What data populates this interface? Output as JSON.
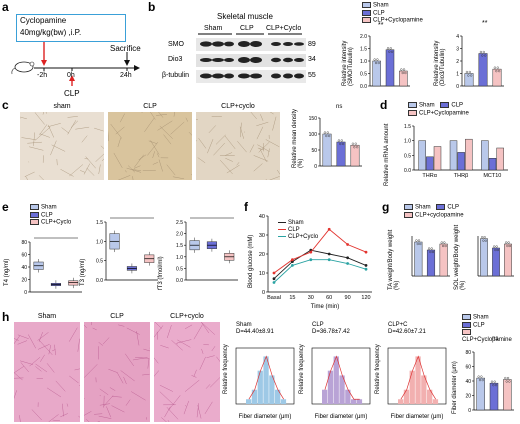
{
  "panel_letters": {
    "a": "a",
    "b": "b",
    "c": "c",
    "d": "d",
    "e": "e",
    "f": "f",
    "g": "g",
    "h": "h"
  },
  "colors": {
    "sham": "#b9c8ea",
    "clp": "#6b6fd6",
    "cyclo": "#f5c3c3",
    "red": "#e3342f",
    "teal": "#2aa3a3"
  },
  "panel_a": {
    "box_title": "Cyclopamine",
    "box_dose": "40mg/kg(bw) ,i.P.",
    "t_m2": "-2h",
    "t_0": "0h",
    "t_24": "24h",
    "sacrifice": "Sacrifice",
    "clp": "CLP"
  },
  "panel_b": {
    "tissue": "Skeletal muscle",
    "groups": [
      "Sham",
      "CLP",
      "CLP+Cyclo"
    ],
    "rows": [
      "SMO",
      "Dio3",
      "β-tubulin"
    ],
    "kda": [
      "89",
      "34",
      "55"
    ],
    "legend": [
      "Sham",
      "CLP",
      "CLP+Cyclopamine"
    ],
    "ylabel1": "Relative intensity (SMO/Tubulin)",
    "ylabel2": "Relative intensity (Dio3/Tubulin)",
    "sig": [
      "**",
      "**",
      "**",
      "**"
    ]
  },
  "panel_c": {
    "labels": [
      "sham",
      "CLP",
      "CLP+cyclo"
    ],
    "ylabel": "Relative mean density (%)",
    "xcats": [
      "Sham",
      "CLP",
      "CLP+cyclo"
    ],
    "sig": [
      "ns",
      "*"
    ]
  },
  "panel_d": {
    "legend": [
      "Sham",
      "CLP",
      "CLP+Cyclopamine"
    ],
    "ylabel": "Relative mRNA amount",
    "xcats": [
      "THRα",
      "THRβ",
      "MCT10"
    ]
  },
  "panel_e": {
    "legend": [
      "Sham",
      "CLP",
      "CLP+Cyclo"
    ],
    "ylabels": [
      "T4 (ng/ml)",
      "T3 (ng/ml)",
      "fT3 (fmol/ml)"
    ],
    "sig": [
      "*",
      "ns",
      "*",
      "*",
      "ns",
      "*"
    ]
  },
  "panel_f": {
    "legend": [
      "Sham",
      "CLP",
      "CLP+Cyclo"
    ],
    "ylabel": "Blood glucose (mM)",
    "xlabel": "Time (min)",
    "yticks": [
      "0",
      "10",
      "20",
      "30",
      "40"
    ],
    "xticks": [
      "Basal",
      "15",
      "30",
      "60",
      "90",
      "120"
    ]
  },
  "panel_g": {
    "legend": [
      "Sham",
      "CLP",
      "CLP+cyclopamine"
    ],
    "ylabels": [
      "TA weight/Body weight (%)",
      "SOL weight/Body weight (%)"
    ],
    "yticks1": [
      "0.00",
      "0.05",
      "0.10",
      "0.15",
      "0.20"
    ],
    "yticks2": [
      "0.00",
      "0.01",
      "0.02",
      "0.03"
    ]
  },
  "panel_h": {
    "labels": [
      "Sham",
      "CLP",
      "CLP+cyclo"
    ],
    "hist_labels": [
      "Sham",
      "CLP",
      "CLP+C"
    ],
    "hist_stats": [
      "D=44.40±8.91",
      "D=36.78±7.42",
      "D=42.60±7.21"
    ],
    "hist_ylabel": "Relative frequency",
    "hist_xlabel": "Fiber diameter (μm)",
    "bar_legend": [
      "Sham",
      "CLP",
      "CLP+Cyclopamine"
    ],
    "bar_ylabel": "Fiber diameter (μm)",
    "bar_sig": [
      "ns",
      "*",
      "*"
    ]
  },
  "chart_data": [
    {
      "type": "bar",
      "id": "b-smo",
      "categories": [
        "Sham",
        "CLP",
        "CLP+Cyclopamine"
      ],
      "values": [
        1.0,
        1.45,
        0.6
      ],
      "ylim": [
        0,
        2.0
      ],
      "yticks": [
        "0.0",
        "0.5",
        "1.0",
        "1.5",
        "2.0"
      ]
    },
    {
      "type": "bar",
      "id": "b-dio3",
      "categories": [
        "Sham",
        "CLP",
        "CLP+Cyclopamine"
      ],
      "values": [
        1.0,
        2.6,
        1.35
      ],
      "ylim": [
        0,
        4
      ],
      "yticks": [
        "0",
        "1",
        "2",
        "3",
        "4"
      ]
    },
    {
      "type": "bar",
      "id": "c-density",
      "categories": [
        "Sham",
        "CLP",
        "CLP+cyclo"
      ],
      "values": [
        100,
        75,
        65
      ],
      "ylim": [
        0,
        150
      ],
      "yticks": [
        "0",
        "50",
        "100",
        "150"
      ]
    },
    {
      "type": "bar",
      "id": "d-mrna",
      "categories": [
        "THRα",
        "THRβ",
        "MCT10"
      ],
      "series": [
        {
          "name": "Sham",
          "values": [
            1.0,
            1.0,
            1.0
          ]
        },
        {
          "name": "CLP",
          "values": [
            0.45,
            0.6,
            0.4
          ]
        },
        {
          "name": "CLP+Cyclopamine",
          "values": [
            0.8,
            1.05,
            0.75
          ]
        }
      ],
      "ylim": [
        0,
        1.5
      ],
      "yticks": [
        "0.0",
        "0.5",
        "1.0",
        "1.5"
      ]
    },
    {
      "type": "box",
      "id": "e-t4",
      "categories": [
        "Sham",
        "CLP",
        "CLP+Cyclo"
      ],
      "medians": [
        42,
        12,
        15
      ],
      "q1": [
        36,
        10,
        11
      ],
      "q3": [
        48,
        14,
        18
      ],
      "ylim": [
        0,
        80
      ],
      "yticks": [
        "0",
        "20",
        "40",
        "60",
        "80"
      ]
    },
    {
      "type": "box",
      "id": "e-t3",
      "categories": [
        "Sham",
        "CLP",
        "CLP+Cyclo"
      ],
      "medians": [
        1.0,
        0.3,
        0.55
      ],
      "q1": [
        0.8,
        0.25,
        0.45
      ],
      "q3": [
        1.2,
        0.35,
        0.65
      ],
      "ylim": [
        0,
        1.5
      ],
      "yticks": [
        "0.0",
        "0.5",
        "1.0",
        "1.5"
      ]
    },
    {
      "type": "box",
      "id": "e-ft3",
      "categories": [
        "Sham",
        "CLP",
        "CLP+Cyclo"
      ],
      "medians": [
        1.5,
        1.5,
        1.0
      ],
      "q1": [
        1.3,
        1.35,
        0.85
      ],
      "q3": [
        1.7,
        1.65,
        1.15
      ],
      "ylim": [
        0,
        2.5
      ],
      "yticks": [
        "0.0",
        "0.5",
        "1.0",
        "1.5",
        "2.0",
        "2.5"
      ]
    },
    {
      "type": "line",
      "id": "f-glucose",
      "x": [
        "Basal",
        "15",
        "30",
        "60",
        "90",
        "120"
      ],
      "series": [
        {
          "name": "Sham",
          "values": [
            7,
            16,
            22,
            20,
            18,
            14
          ]
        },
        {
          "name": "CLP",
          "values": [
            10,
            17,
            21,
            33,
            25,
            21
          ]
        },
        {
          "name": "CLP+Cyclo",
          "values": [
            5,
            14,
            17,
            17,
            15,
            12
          ]
        }
      ],
      "ylim": [
        0,
        40
      ]
    },
    {
      "type": "bar",
      "id": "g-ta",
      "categories": [
        "Sham",
        "CLP",
        "CLP+cyclopamine"
      ],
      "values": [
        0.17,
        0.13,
        0.16
      ],
      "ylim": [
        0,
        0.2
      ]
    },
    {
      "type": "bar",
      "id": "g-sol",
      "categories": [
        "Sham",
        "CLP",
        "CLP+cyclopamine"
      ],
      "values": [
        0.028,
        0.021,
        0.024
      ],
      "ylim": [
        0,
        0.03
      ]
    },
    {
      "type": "bar",
      "id": "h-fiber",
      "categories": [
        "Sham",
        "CLP",
        "CLP+Cyclopamine"
      ],
      "values": [
        44,
        37,
        42
      ],
      "ylim": [
        0,
        80
      ],
      "yticks": [
        "0",
        "20",
        "40",
        "60",
        "80"
      ]
    }
  ]
}
